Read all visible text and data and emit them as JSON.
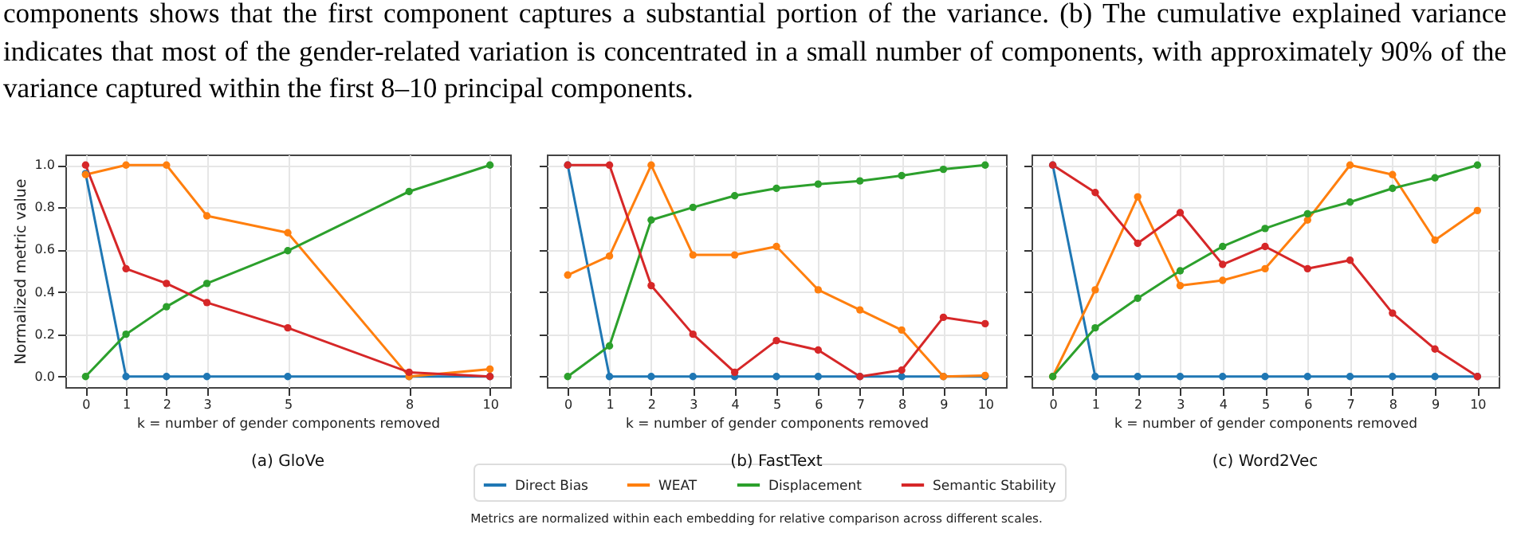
{
  "chart_data": [
    {
      "type": "line",
      "title": "(a) GloVe",
      "xlabel": "k = number of gender components removed",
      "ylabel": "Normalized metric value",
      "annotations": [
        "components shows that the first component captures a substantial portion of the variance. (b) The cumulative explained variance indicates that most of the gender-related variation is concentrated in a small number of components, with approximately 90% of the variance captured within the first 8–10 principal components."
      ],
      "x": [
        0,
        1,
        2,
        3,
        5,
        8,
        10
      ],
      "xlim": [
        -0.5,
        10.5
      ],
      "xticks": [
        0,
        1,
        2,
        3,
        5,
        8,
        10
      ],
      "ylim": [
        -0.05,
        1.05
      ],
      "yticks": [
        {
          "value": 0,
          "label": "0.0"
        },
        0.2,
        0.4,
        0.6,
        0.8,
        {
          "value": 1,
          "label": "1.0"
        }
      ],
      "grid": true,
      "marker": "circle",
      "line_style": "solid",
      "series": [
        {
          "color": "#1f77b4",
          "values": [
            0.96,
            0,
            0,
            0,
            0,
            0,
            0
          ]
        },
        {
          "color": "#ff7f0e",
          "values": [
            0.955,
            1,
            1,
            0.76,
            0.68,
            0,
            0.035
          ]
        },
        {
          "color": "#2ca02c",
          "values": [
            0,
            0.2,
            0.33,
            0.44,
            0.595,
            0.875,
            1
          ]
        },
        {
          "color": "#d62728",
          "values": [
            1,
            0.51,
            0.44,
            0.35,
            0.23,
            0.02,
            0
          ]
        }
      ]
    },
    {
      "type": "line",
      "title": "(b) FastText",
      "xlabel": "k = number of gender components removed",
      "legend": "bottom",
      "annotations": [
        "Metrics are normalized within each embedding for relative comparison across different scales."
      ],
      "x": [
        0,
        1,
        2,
        3,
        4,
        5,
        6,
        7,
        8,
        9,
        10
      ],
      "xlim": [
        -0.5,
        10.5
      ],
      "xticks": [
        0,
        1,
        2,
        3,
        4,
        5,
        6,
        7,
        8,
        9,
        10
      ],
      "ylim": [
        -0.05,
        1.05
      ],
      "yticks": [
        0.0,
        0.2,
        0.4,
        0.6,
        0.8,
        1.0
      ],
      "tick_labels": "x",
      "grid": true,
      "marker": "circle",
      "line_style": "solid",
      "series": [
        {
          "name": "Direct Bias",
          "color": "#1f77b4",
          "values": [
            1,
            0,
            0,
            0,
            0,
            0,
            0,
            0,
            0,
            0,
            0
          ]
        },
        {
          "name": "WEAT",
          "color": "#ff7f0e",
          "values": [
            0.48,
            0.57,
            1,
            0.575,
            0.575,
            0.615,
            0.41,
            0.315,
            0.22,
            0,
            0.005
          ]
        },
        {
          "name": "Displacement",
          "color": "#2ca02c",
          "values": [
            0,
            0.145,
            0.74,
            0.8,
            0.855,
            0.89,
            0.91,
            0.925,
            0.95,
            0.98,
            1
          ]
        },
        {
          "name": "Semantic Stability",
          "color": "#d62728",
          "values": [
            1,
            1,
            0.43,
            0.2,
            0.02,
            0.17,
            0.125,
            0,
            0.03,
            0.28,
            0.25
          ]
        }
      ]
    },
    {
      "type": "line",
      "title": "(c) Word2Vec",
      "xlabel": "k = number of gender components removed",
      "x": [
        0,
        1,
        2,
        3,
        4,
        5,
        6,
        7,
        8,
        9,
        10
      ],
      "xlim": [
        -0.5,
        10.5
      ],
      "xticks": [
        0,
        1,
        2,
        3,
        4,
        5,
        6,
        7,
        8,
        9,
        10
      ],
      "ylim": [
        -0.05,
        1.05
      ],
      "yticks": [
        0.0,
        0.2,
        0.4,
        0.6,
        0.8,
        1.0
      ],
      "tick_labels": "x",
      "grid": true,
      "marker": "circle",
      "line_style": "solid",
      "series": [
        {
          "color": "#1f77b4",
          "values": [
            1,
            0,
            0,
            0,
            0,
            0,
            0,
            0,
            0,
            0,
            0
          ]
        },
        {
          "color": "#ff7f0e",
          "values": [
            0,
            0.41,
            0.85,
            0.43,
            0.455,
            0.51,
            0.74,
            1,
            0.955,
            0.645,
            0.785
          ]
        },
        {
          "color": "#2ca02c",
          "values": [
            0,
            0.23,
            0.37,
            0.5,
            0.615,
            0.7,
            0.77,
            0.825,
            0.89,
            0.94,
            1
          ]
        },
        {
          "color": "#d62728",
          "values": [
            1,
            0.87,
            0.63,
            0.775,
            0.53,
            0.615,
            0.51,
            0.55,
            0.3,
            0.13,
            0
          ]
        }
      ]
    }
  ]
}
